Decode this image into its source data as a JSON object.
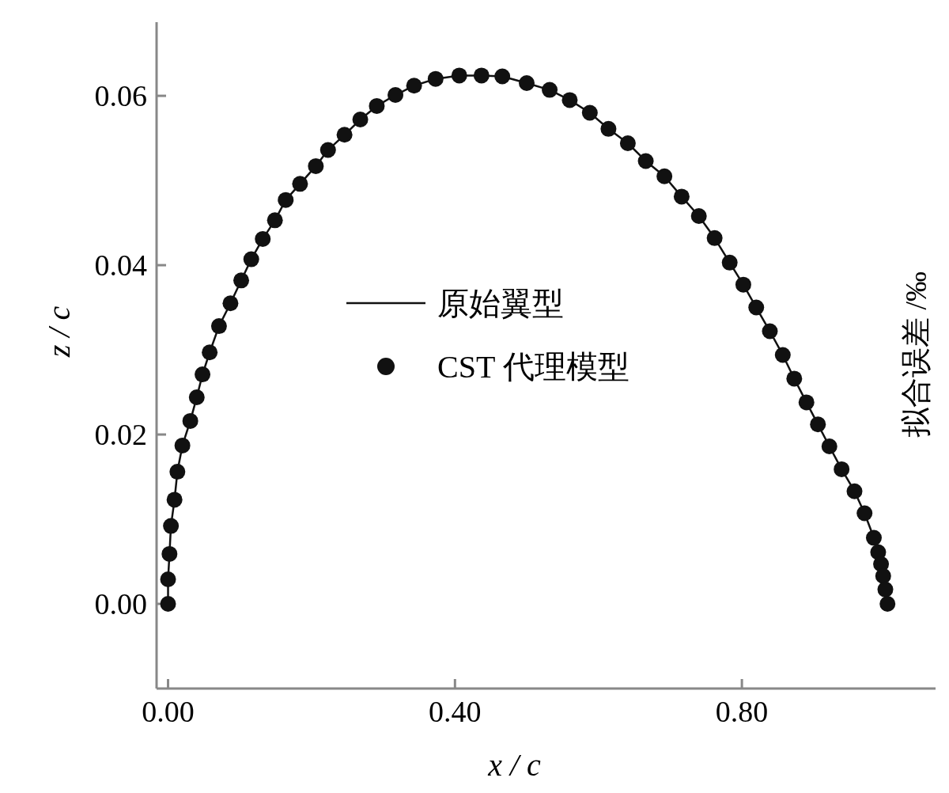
{
  "chart_data": {
    "type": "line",
    "xlabel": "x / c",
    "ylabel": "z / c",
    "y2label": "拟合误差 /‰",
    "xlim": [
      -0.016,
      1.07
    ],
    "ylim": [
      -0.01,
      0.0687
    ],
    "xticks": [
      {
        "value": 0,
        "label": "0.00"
      },
      {
        "value": 0.4,
        "label": "0.40"
      },
      {
        "value": 0.8,
        "label": "0.80"
      }
    ],
    "yticks": [
      {
        "value": 0,
        "label": "0.00"
      },
      {
        "value": 0.02,
        "label": "0.02"
      },
      {
        "value": 0.04,
        "label": "0.04"
      },
      {
        "value": 0.06,
        "label": "0.06"
      }
    ],
    "x": [
      0,
      0,
      0.002,
      0.004,
      0.009,
      0.013,
      0.02,
      0.031,
      0.04,
      0.048,
      0.058,
      0.071,
      0.087,
      0.102,
      0.116,
      0.132,
      0.149,
      0.164,
      0.184,
      0.206,
      0.223,
      0.246,
      0.268,
      0.291,
      0.317,
      0.343,
      0.373,
      0.406,
      0.437,
      0.466,
      0.5,
      0.532,
      0.56,
      0.588,
      0.614,
      0.641,
      0.666,
      0.692,
      0.716,
      0.74,
      0.762,
      0.783,
      0.802,
      0.82,
      0.839,
      0.857,
      0.873,
      0.89,
      0.906,
      0.922,
      0.939,
      0.957,
      0.971,
      0.984,
      0.99,
      0.994,
      0.997,
      1.0,
      1.003
    ],
    "series": [
      {
        "name": "原始翼型",
        "color": "#111111",
        "values": [
          0,
          0.0029,
          0.0059,
          0.0092,
          0.0123,
          0.0156,
          0.0187,
          0.0216,
          0.0244,
          0.0271,
          0.0297,
          0.0328,
          0.0355,
          0.0382,
          0.0407,
          0.0431,
          0.0453,
          0.0477,
          0.0496,
          0.0517,
          0.0536,
          0.0554,
          0.0572,
          0.0588,
          0.0601,
          0.0612,
          0.062,
          0.0624,
          0.0624,
          0.0623,
          0.0615,
          0.0607,
          0.0595,
          0.058,
          0.0561,
          0.0544,
          0.0523,
          0.0505,
          0.0481,
          0.0458,
          0.0432,
          0.0403,
          0.0377,
          0.035,
          0.0322,
          0.0294,
          0.0266,
          0.0238,
          0.0212,
          0.0186,
          0.0159,
          0.0133,
          0.0107,
          0.0078,
          0.0061,
          0.0047,
          0.0033,
          0.0017,
          0
        ]
      },
      {
        "name": "CST 代理模型",
        "type": "scatter",
        "color": "#111111",
        "values": [
          0,
          0.0029,
          0.0059,
          0.0092,
          0.0123,
          0.0156,
          0.0187,
          0.0216,
          0.0244,
          0.0271,
          0.0297,
          0.0328,
          0.0355,
          0.0382,
          0.0407,
          0.0431,
          0.0453,
          0.0477,
          0.0496,
          0.0517,
          0.0536,
          0.0554,
          0.0572,
          0.0588,
          0.0601,
          0.0612,
          0.062,
          0.0624,
          0.0624,
          0.0623,
          0.0615,
          0.0607,
          0.0595,
          0.058,
          0.0561,
          0.0544,
          0.0523,
          0.0505,
          0.0481,
          0.0458,
          0.0432,
          0.0403,
          0.0377,
          0.035,
          0.0322,
          0.0294,
          0.0266,
          0.0238,
          0.0212,
          0.0186,
          0.0159,
          0.0133,
          0.0107,
          0.0078,
          0.0061,
          0.0047,
          0.0033,
          0.0017,
          0
        ]
      }
    ],
    "legend": "center"
  }
}
